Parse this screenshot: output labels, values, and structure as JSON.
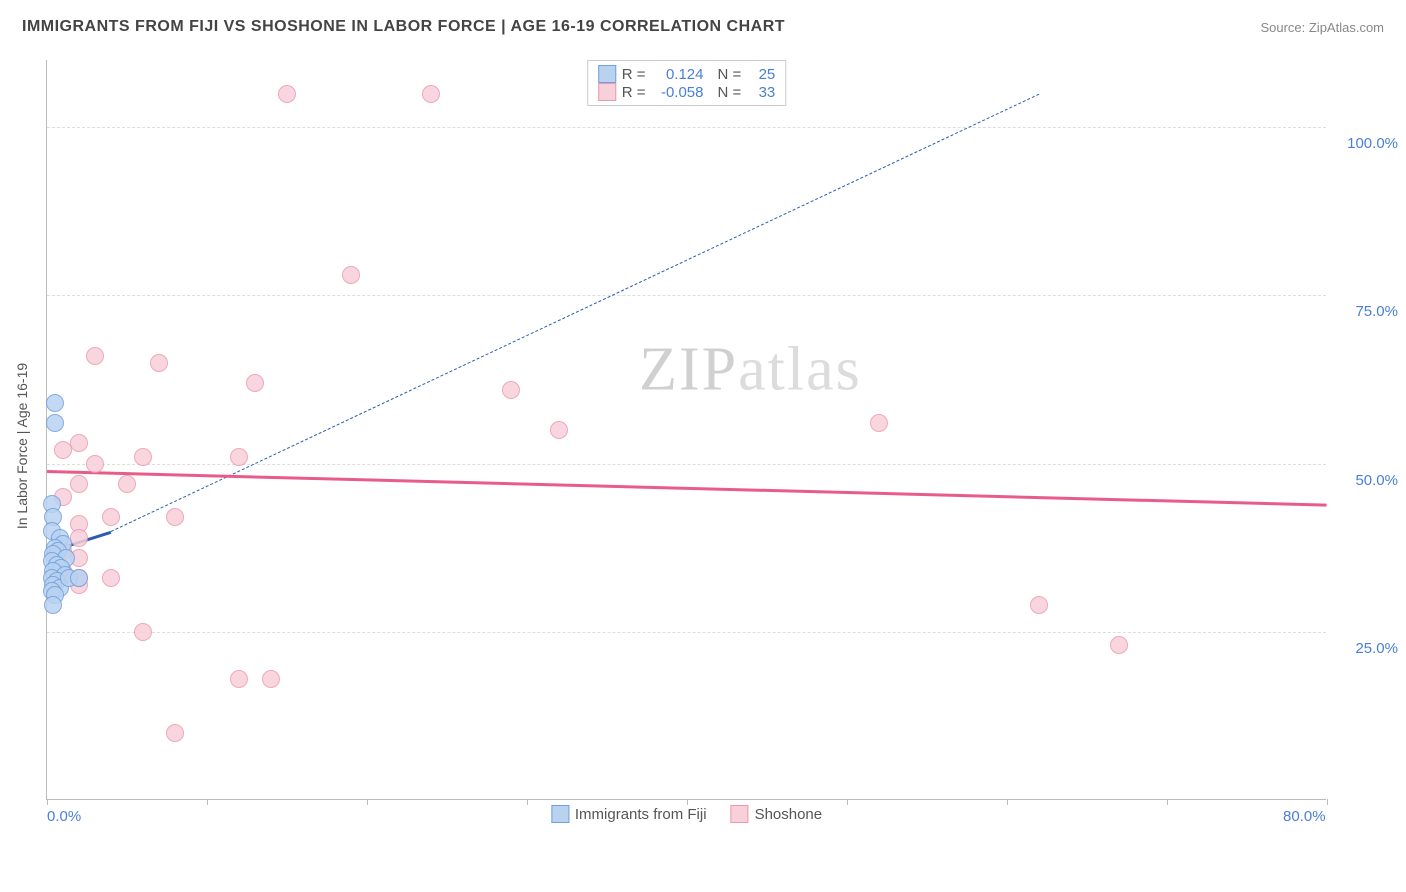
{
  "header": {
    "title": "IMMIGRANTS FROM FIJI VS SHOSHONE IN LABOR FORCE | AGE 16-19 CORRELATION CHART",
    "source": "Source: ZipAtlas.com"
  },
  "chart": {
    "type": "scatter",
    "ylabel": "In Labor Force | Age 16-19",
    "xlim": [
      0,
      80
    ],
    "ylim": [
      0,
      110
    ],
    "xticks": [
      0,
      10,
      20,
      30,
      40,
      50,
      60,
      70,
      80
    ],
    "xtick_labels": {
      "0": "0.0%",
      "80": "80.0%"
    },
    "yticks": [
      25,
      50,
      75,
      100
    ],
    "ytick_labels": {
      "25": "25.0%",
      "50": "50.0%",
      "75": "75.0%",
      "100": "100.0%"
    },
    "gridline_color": "#dddddd",
    "axis_color": "#bbbbbb",
    "background_color": "#ffffff",
    "point_radius": 9,
    "series": [
      {
        "name": "Immigrants from Fiji",
        "fill": "#b9d2f0",
        "stroke": "#6fa0e0",
        "r_value": "0.124",
        "n_value": "25",
        "points": [
          [
            0.5,
            59
          ],
          [
            0.5,
            56
          ],
          [
            0.3,
            44
          ],
          [
            0.4,
            42
          ],
          [
            0.3,
            40
          ],
          [
            0.8,
            39
          ],
          [
            1.0,
            38
          ],
          [
            0.5,
            37.5
          ],
          [
            0.7,
            37
          ],
          [
            0.4,
            36.5
          ],
          [
            1.2,
            36
          ],
          [
            0.3,
            35.5
          ],
          [
            0.6,
            35
          ],
          [
            0.9,
            34.5
          ],
          [
            0.4,
            34
          ],
          [
            1.1,
            33.5
          ],
          [
            0.3,
            33
          ],
          [
            0.6,
            32.5
          ],
          [
            0.4,
            32
          ],
          [
            0.8,
            31.5
          ],
          [
            1.4,
            33
          ],
          [
            2.0,
            33
          ],
          [
            0.3,
            31
          ],
          [
            0.5,
            30.5
          ],
          [
            0.4,
            29
          ]
        ],
        "trend": {
          "x1": 0,
          "y1": 37,
          "x2": 4,
          "y2": 40,
          "dashed_ext": {
            "x1": 4,
            "y1": 40,
            "x2": 62,
            "y2": 105
          },
          "color": "#2a5db0",
          "width": 3
        }
      },
      {
        "name": "Shoshone",
        "fill": "#f8d0da",
        "stroke": "#e99ab0",
        "r_value": "-0.058",
        "n_value": "33",
        "points": [
          [
            15,
            105
          ],
          [
            24,
            105
          ],
          [
            19,
            78
          ],
          [
            3,
            66
          ],
          [
            7,
            65
          ],
          [
            13,
            62
          ],
          [
            29,
            61
          ],
          [
            2,
            53
          ],
          [
            1,
            52
          ],
          [
            6,
            51
          ],
          [
            12,
            51
          ],
          [
            3,
            50
          ],
          [
            32,
            55
          ],
          [
            52,
            56
          ],
          [
            5,
            47
          ],
          [
            2,
            47
          ],
          [
            8,
            42
          ],
          [
            4,
            42
          ],
          [
            1,
            45
          ],
          [
            2,
            41
          ],
          [
            2,
            39
          ],
          [
            1,
            37
          ],
          [
            2,
            36
          ],
          [
            1,
            34
          ],
          [
            2,
            32
          ],
          [
            2,
            33
          ],
          [
            4,
            33
          ],
          [
            6,
            25
          ],
          [
            8,
            10
          ],
          [
            12,
            18
          ],
          [
            14,
            18
          ],
          [
            62,
            29
          ],
          [
            67,
            23
          ]
        ],
        "trend": {
          "x1": 0,
          "y1": 49,
          "x2": 80,
          "y2": 44,
          "color": "#e85c8a",
          "width": 3
        }
      }
    ],
    "legend_top": {
      "r_label": "R =",
      "n_label": "N ="
    },
    "bottom_legend": {
      "s1": "Immigrants from Fiji",
      "s2": "Shoshone"
    },
    "watermark": {
      "zip": "ZIP",
      "atlas": "atlas"
    }
  }
}
